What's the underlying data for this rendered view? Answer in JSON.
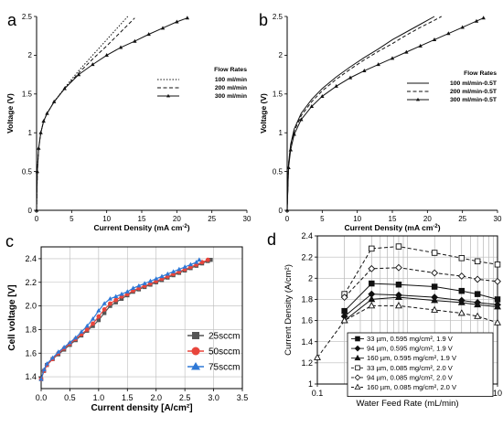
{
  "panels": [
    {
      "letter": "a",
      "chart_data": {
        "type": "line",
        "xlabel": "Current Density (mA cm",
        "xlabel_sup": "-2",
        "xlabel_end": ")",
        "ylabel": "Voltage (V)",
        "xlim": [
          0,
          30
        ],
        "ylim": [
          0,
          2.5
        ],
        "xticks": [
          0,
          5,
          10,
          15,
          20,
          25,
          30
        ],
        "yticks": [
          0,
          0.5,
          1,
          1.5,
          2,
          2.5
        ],
        "xtick_labels": [
          "0",
          "5",
          "10",
          "15",
          "20",
          "25",
          "30"
        ],
        "ytick_labels": [
          "0",
          "0.5",
          "1",
          "1.5",
          "2",
          "2.5"
        ],
        "legend_title": "Flow Rates",
        "legend_position": "right",
        "series": [
          {
            "name": "100 ml/min",
            "style": "dotted",
            "x": [
              0,
              0.1,
              0.3,
              0.6,
              1,
              1.5,
              2.5,
              4,
              6,
              8,
              10,
              12,
              13
            ],
            "y": [
              0,
              0.5,
              0.8,
              1.0,
              1.15,
              1.25,
              1.4,
              1.58,
              1.8,
              2.0,
              2.2,
              2.4,
              2.5
            ]
          },
          {
            "name": "200 ml/min",
            "style": "dashed",
            "x": [
              0,
              0.1,
              0.3,
              0.6,
              1,
              1.5,
              2.5,
              4,
              6,
              8,
              10,
              12,
              14
            ],
            "y": [
              0,
              0.5,
              0.8,
              1.0,
              1.15,
              1.25,
              1.4,
              1.57,
              1.77,
              1.95,
              2.12,
              2.3,
              2.48
            ]
          },
          {
            "name": "300 ml/min",
            "style": "triangle",
            "x": [
              0,
              0.1,
              0.3,
              0.6,
              1,
              1.5,
              2.5,
              4,
              6,
              8,
              10,
              12,
              14,
              16,
              18,
              20,
              21.5
            ],
            "y": [
              0,
              0.5,
              0.8,
              1.0,
              1.15,
              1.25,
              1.4,
              1.57,
              1.75,
              1.88,
              2.0,
              2.1,
              2.18,
              2.27,
              2.35,
              2.43,
              2.48
            ]
          }
        ]
      }
    },
    {
      "letter": "b",
      "chart_data": {
        "type": "line",
        "xlabel": "Current Density (mA cm",
        "xlabel_sup": "-2",
        "xlabel_end": ")",
        "ylabel": "Voltage (V)",
        "xlim": [
          0,
          30
        ],
        "ylim": [
          0,
          2.5
        ],
        "xticks": [
          0,
          5,
          10,
          15,
          20,
          25,
          30
        ],
        "yticks": [
          0,
          0.5,
          1,
          1.5,
          2,
          2.5
        ],
        "xtick_labels": [
          "0",
          "5",
          "10",
          "15",
          "20",
          "25",
          "30"
        ],
        "ytick_labels": [
          "0",
          "0.5",
          "1",
          "1.5",
          "2",
          "2.5"
        ],
        "legend_title": "Flow Rates",
        "legend_position": "right",
        "series": [
          {
            "name": "100 ml/min-0.5T",
            "style": "solid",
            "x": [
              0,
              0.2,
              0.5,
              1,
              2,
              3.5,
              5,
              7,
              9,
              11,
              13,
              15,
              17,
              19,
              21
            ],
            "y": [
              0,
              0.6,
              0.85,
              1.05,
              1.25,
              1.43,
              1.57,
              1.72,
              1.85,
              1.97,
              2.08,
              2.2,
              2.3,
              2.4,
              2.5
            ]
          },
          {
            "name": "200 ml/min-0.5T",
            "style": "dashed",
            "x": [
              0,
              0.2,
              0.5,
              1,
              2,
              3.5,
              5,
              7,
              9,
              11,
              13,
              15,
              17,
              19,
              21,
              22
            ],
            "y": [
              0,
              0.6,
              0.83,
              1.02,
              1.22,
              1.4,
              1.54,
              1.69,
              1.82,
              1.94,
              2.05,
              2.15,
              2.26,
              2.36,
              2.45,
              2.5
            ]
          },
          {
            "name": "300 ml/min-0.5T",
            "style": "triangle",
            "x": [
              0,
              0.2,
              0.5,
              1,
              2,
              3.5,
              5,
              7,
              9,
              11,
              13,
              15,
              17,
              19,
              21,
              23,
              25,
              27,
              28
            ],
            "y": [
              0,
              0.55,
              0.78,
              0.98,
              1.17,
              1.34,
              1.47,
              1.6,
              1.71,
              1.8,
              1.88,
              1.96,
              2.04,
              2.12,
              2.2,
              2.28,
              2.36,
              2.44,
              2.48
            ]
          }
        ]
      }
    },
    {
      "letter": "c",
      "chart_data": {
        "type": "line",
        "xlabel": "Current density [A/cm²]",
        "ylabel": "Cell voltage [V]",
        "xlim": [
          0,
          3.5
        ],
        "ylim": [
          1.3,
          2.5
        ],
        "xticks": [
          0,
          0.5,
          1,
          1.5,
          2,
          2.5,
          3,
          3.5
        ],
        "yticks": [
          1.4,
          1.6,
          1.8,
          2.0,
          2.2,
          2.4
        ],
        "xtick_labels": [
          "0.0",
          "0.5",
          "1.0",
          "1.5",
          "2.0",
          "2.5",
          "3.0",
          "3.5"
        ],
        "ytick_labels": [
          "1.4",
          "1.6",
          "1.8",
          "2.0",
          "2.2",
          "2.4"
        ],
        "grid": true,
        "legend_position": "right",
        "series": [
          {
            "name": "25sccm",
            "color": "#555555",
            "marker": "square",
            "x": [
              0,
              0.05,
              0.1,
              0.2,
              0.3,
              0.4,
              0.5,
              0.6,
              0.7,
              0.8,
              0.9,
              1.0,
              1.1,
              1.2,
              1.3,
              1.4,
              1.5,
              1.6,
              1.7,
              1.8,
              1.9,
              2.0,
              2.1,
              2.2,
              2.3,
              2.4,
              2.5,
              2.6,
              2.7,
              2.8,
              2.9,
              2.95
            ],
            "y": [
              1.38,
              1.45,
              1.5,
              1.55,
              1.59,
              1.63,
              1.67,
              1.71,
              1.75,
              1.79,
              1.83,
              1.88,
              1.94,
              2.0,
              2.03,
              2.06,
              2.09,
              2.12,
              2.14,
              2.16,
              2.18,
              2.2,
              2.22,
              2.24,
              2.26,
              2.28,
              2.3,
              2.32,
              2.34,
              2.36,
              2.38,
              2.39
            ]
          },
          {
            "name": "50sccm",
            "color": "#e8453c",
            "marker": "circle",
            "x": [
              0,
              0.05,
              0.1,
              0.2,
              0.3,
              0.4,
              0.5,
              0.6,
              0.7,
              0.8,
              0.9,
              1.0,
              1.1,
              1.2,
              1.3,
              1.4,
              1.5,
              1.6,
              1.7,
              1.8,
              1.9,
              2.0,
              2.1,
              2.2,
              2.3,
              2.4,
              2.5,
              2.6,
              2.7,
              2.8,
              2.9
            ],
            "y": [
              1.38,
              1.45,
              1.5,
              1.55,
              1.6,
              1.64,
              1.68,
              1.72,
              1.76,
              1.8,
              1.85,
              1.91,
              1.97,
              2.02,
              2.05,
              2.08,
              2.1,
              2.13,
              2.15,
              2.17,
              2.19,
              2.21,
              2.23,
              2.25,
              2.27,
              2.29,
              2.31,
              2.33,
              2.35,
              2.37,
              2.39
            ]
          },
          {
            "name": "75sccm",
            "color": "#2e78d6",
            "marker": "triangle",
            "x": [
              0,
              0.05,
              0.1,
              0.2,
              0.3,
              0.4,
              0.5,
              0.6,
              0.7,
              0.8,
              0.9,
              1.0,
              1.1,
              1.2,
              1.3,
              1.4,
              1.5,
              1.6,
              1.7,
              1.8,
              1.9,
              2.0,
              2.1,
              2.2,
              2.3,
              2.4,
              2.5,
              2.6,
              2.7,
              2.75
            ],
            "y": [
              1.38,
              1.46,
              1.51,
              1.56,
              1.61,
              1.65,
              1.69,
              1.73,
              1.78,
              1.83,
              1.89,
              1.96,
              2.02,
              2.06,
              2.08,
              2.1,
              2.12,
              2.15,
              2.17,
              2.19,
              2.21,
              2.23,
              2.25,
              2.27,
              2.29,
              2.31,
              2.33,
              2.35,
              2.37,
              2.39
            ]
          }
        ]
      }
    },
    {
      "letter": "d",
      "chart_data": {
        "type": "line",
        "xlabel": "Water Feed Rate (mL/min)",
        "ylabel": "Current Density (A/cm²)",
        "xscale": "log",
        "xlim": [
          0.1,
          10
        ],
        "ylim": [
          1,
          2.4
        ],
        "xticks": [
          0.1,
          1,
          10
        ],
        "yticks": [
          1,
          1.2,
          1.4,
          1.6,
          1.8,
          2,
          2.2,
          2.4
        ],
        "xtick_labels": [
          "0.1",
          "1",
          "10"
        ],
        "ytick_labels": [
          "1",
          "1.2",
          "1.4",
          "1.6",
          "1.8",
          "2",
          "2.2",
          "2.4"
        ],
        "grid": true,
        "legend_position": "bottom-right",
        "series": [
          {
            "name": "33 µm, 0.595 mg/cm², 1.9 V",
            "marker": "square-filled",
            "line": "solid",
            "x": [
              0.2,
              0.4,
              0.8,
              2,
              4,
              6,
              10
            ],
            "y": [
              1.69,
              1.95,
              1.94,
              1.92,
              1.88,
              1.85,
              1.8
            ]
          },
          {
            "name": "94 µm, 0.595 mg/cm², 1.9 V",
            "marker": "diamond-filled",
            "line": "solid",
            "x": [
              0.2,
              0.4,
              0.8,
              2,
              4,
              6,
              10
            ],
            "y": [
              1.64,
              1.85,
              1.84,
              1.82,
              1.79,
              1.77,
              1.75
            ]
          },
          {
            "name": "160 µm, 0.595 mg/cm², 1.9 V",
            "marker": "triangle-filled",
            "line": "solid",
            "x": [
              0.2,
              0.4,
              0.8,
              2,
              4,
              6,
              10
            ],
            "y": [
              1.6,
              1.8,
              1.82,
              1.79,
              1.77,
              1.75,
              1.73
            ]
          },
          {
            "name": "33 µm, 0.085 mg/cm², 2.0 V",
            "marker": "square-open",
            "line": "dashed",
            "x": [
              0.2,
              0.4,
              0.8,
              2,
              4,
              6,
              10
            ],
            "y": [
              1.85,
              2.28,
              2.3,
              2.24,
              2.19,
              2.16,
              2.13
            ]
          },
          {
            "name": "94 µm, 0.085 mg/cm², 2.0 V",
            "marker": "diamond-open",
            "line": "dashed",
            "x": [
              0.2,
              0.4,
              0.8,
              2,
              4,
              6,
              10
            ],
            "y": [
              1.82,
              2.09,
              2.1,
              2.05,
              2.02,
              1.99,
              1.97
            ]
          },
          {
            "name": "160 µm, 0.085 mg/cm², 2.0 V",
            "marker": "triangle-open",
            "line": "dashed",
            "x": [
              0.1,
              0.2,
              0.4,
              0.8,
              2,
              4,
              6,
              10
            ],
            "y": [
              1.25,
              1.6,
              1.74,
              1.74,
              1.7,
              1.67,
              1.64,
              1.58
            ]
          }
        ]
      }
    }
  ]
}
